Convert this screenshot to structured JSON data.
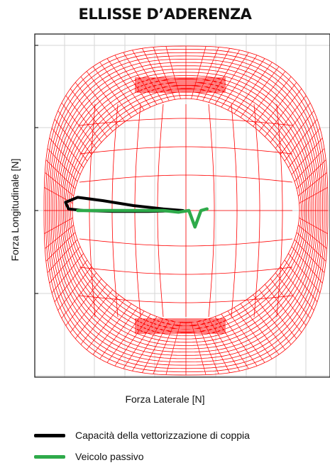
{
  "chart_data": {
    "type": "line",
    "title": "ELLISSE D’ADERENZA",
    "xlabel": "Forza Laterale [N]",
    "ylabel": "Forza Longitudinale [N]",
    "grid": true,
    "legend_position": "bottom",
    "xlim": [
      -1,
      1
    ],
    "ylim": [
      -1,
      1
    ],
    "series": [
      {
        "name": "Capacità della vettorizzazione di coppia",
        "color": "#000000",
        "x": [
          -0.02,
          -0.15,
          -0.35,
          -0.55,
          -0.72,
          -0.8,
          -0.78,
          -0.68,
          -0.48,
          -0.25,
          -0.02
        ],
        "y": [
          0.0,
          0.01,
          0.03,
          0.06,
          0.08,
          0.05,
          0.01,
          0.0,
          -0.005,
          -0.005,
          0.0
        ]
      },
      {
        "name": "Veicolo passivo",
        "color": "#2eaa4a",
        "x": [
          -0.72,
          -0.55,
          -0.35,
          -0.15,
          -0.05,
          0.02,
          0.06,
          0.1,
          0.14
        ],
        "y": [
          0.0,
          0.0,
          0.0,
          0.0,
          -0.01,
          0.0,
          -0.1,
          0.0,
          0.01
        ]
      }
    ],
    "envelope": {
      "name": "",
      "color": "#ff0000",
      "style": "mesh"
    }
  },
  "legend": {
    "items": [
      {
        "label": "Capacità della vettorizzazione di coppia",
        "color": "#000000"
      },
      {
        "label": "Veicolo passivo",
        "color": "#2eaa4a"
      }
    ]
  }
}
